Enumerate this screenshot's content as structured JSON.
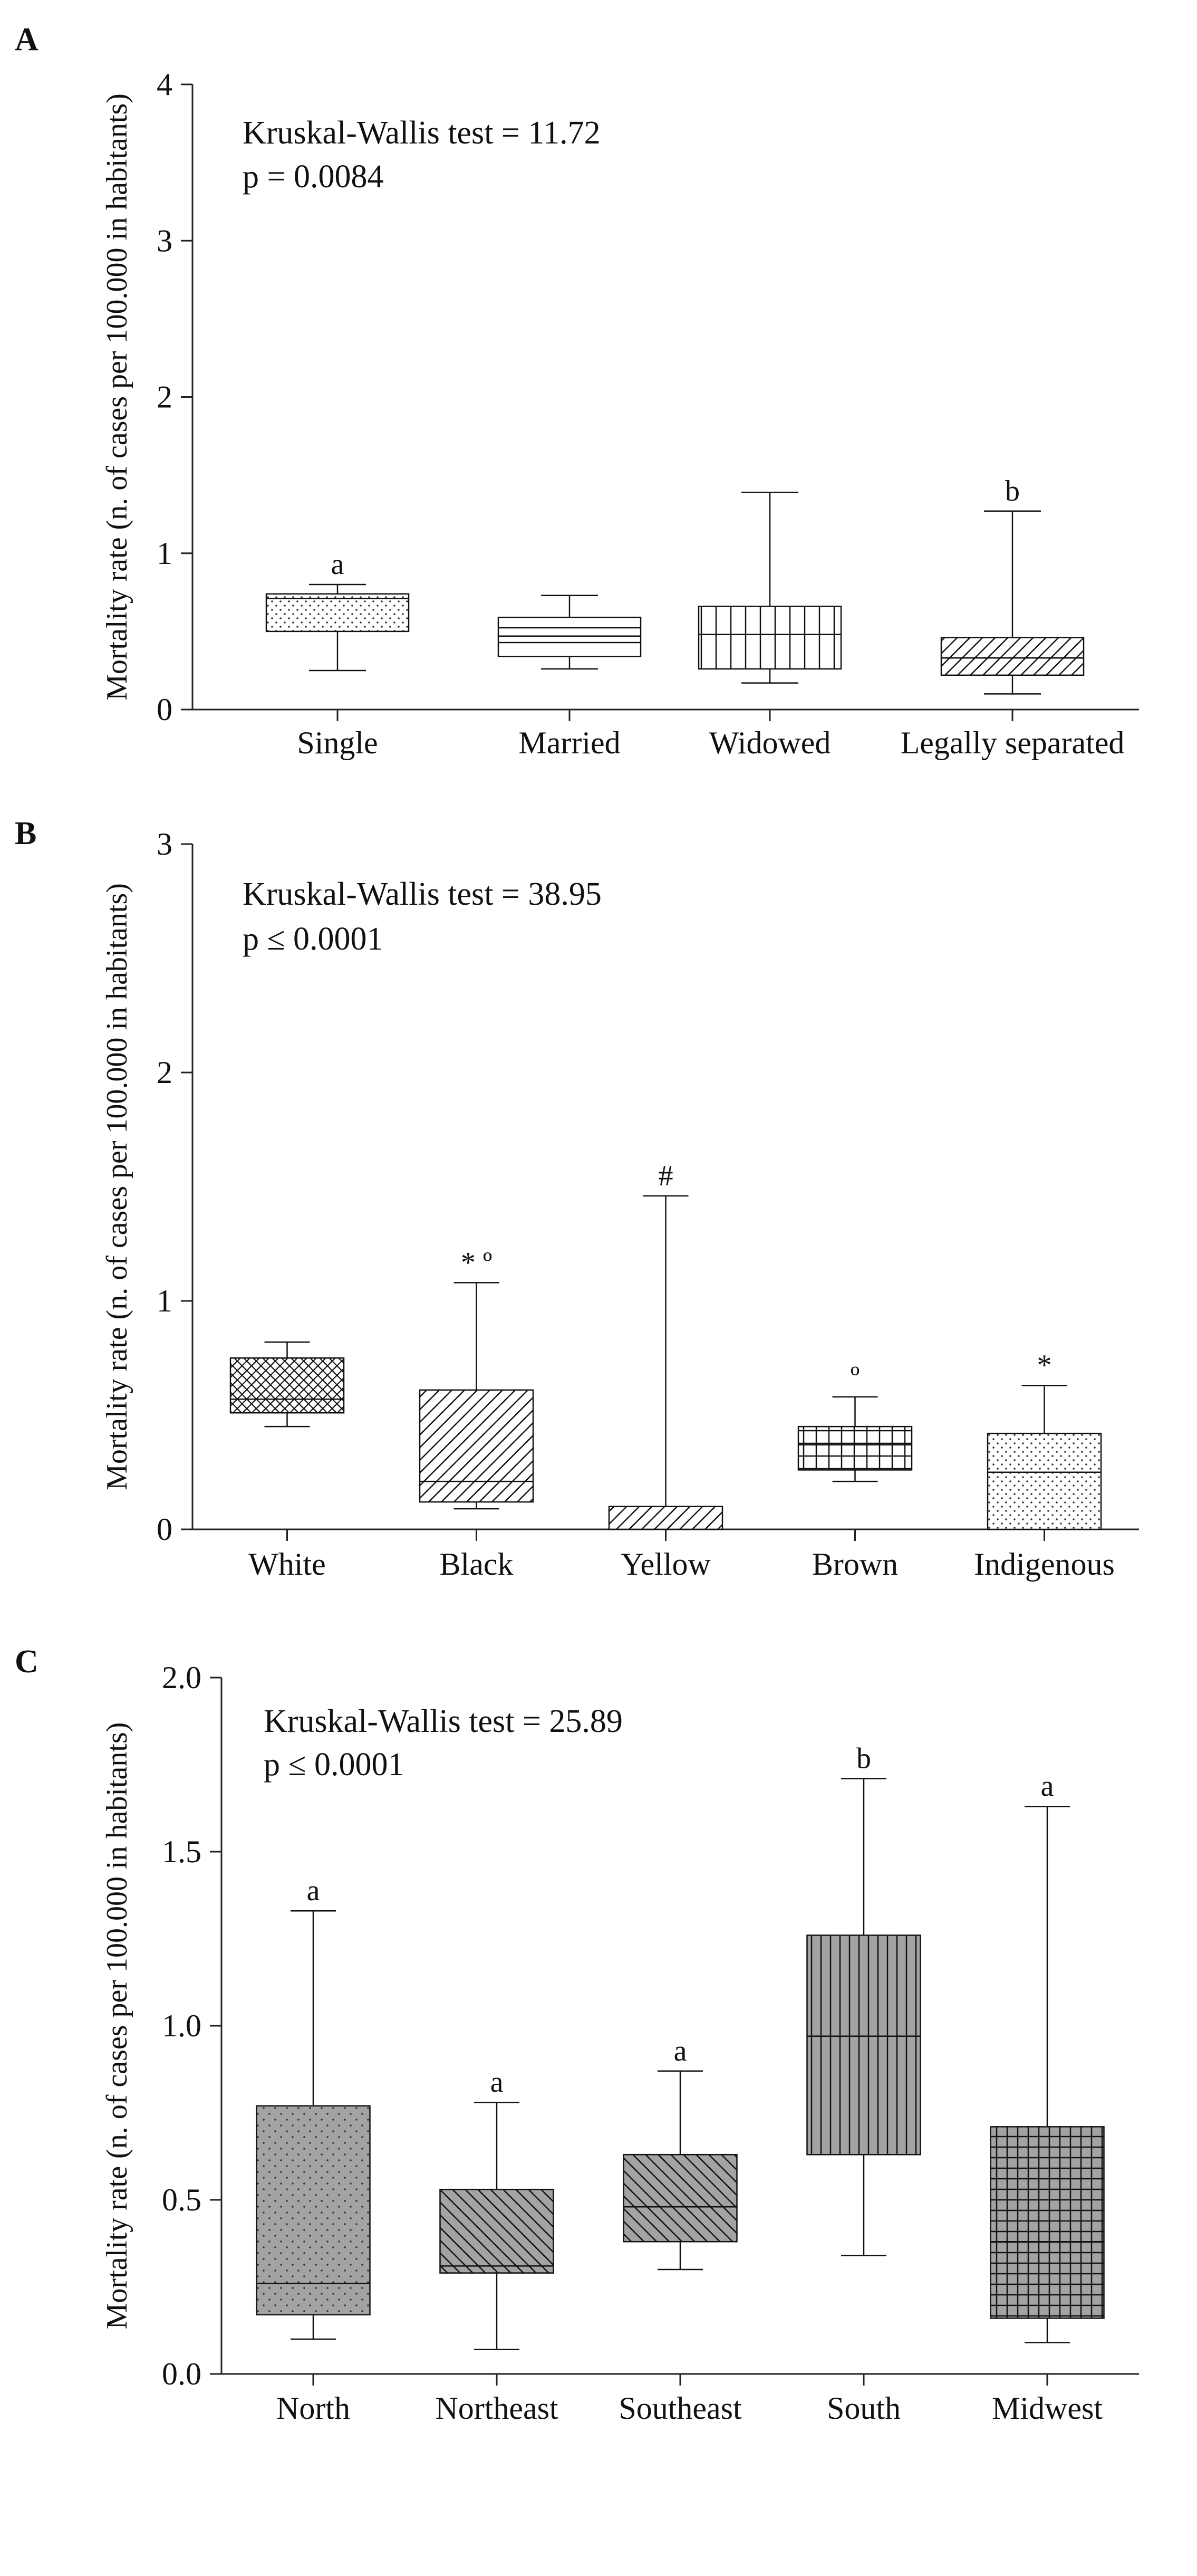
{
  "chart_data": [
    {
      "type": "box",
      "panel_label": "A",
      "ylabel": "Mortality rate (n. of cases per 100.000 in habitants)",
      "ylim": [
        0,
        4
      ],
      "yticks": [
        0,
        1,
        2,
        3,
        4
      ],
      "ytick_labels": [
        "0",
        "1",
        "2",
        "3",
        "4"
      ],
      "stat_text": [
        "Kruskal-Wallis test = 11.72",
        "p = 0.0084"
      ],
      "categories": [
        "Single",
        "Married",
        "Widowed",
        "Legally separated"
      ],
      "boxes": [
        {
          "min": 0.25,
          "q1": 0.5,
          "median": 0.71,
          "q3": 0.74,
          "max": 0.8,
          "pattern": "dots",
          "annotation": "a"
        },
        {
          "min": 0.26,
          "q1": 0.34,
          "median": 0.47,
          "q3": 0.59,
          "max": 0.73,
          "pattern": "hlines",
          "annotation": ""
        },
        {
          "min": 0.17,
          "q1": 0.26,
          "median": 0.48,
          "q3": 0.66,
          "max": 1.39,
          "pattern": "vlines",
          "annotation": ""
        },
        {
          "min": 0.1,
          "q1": 0.22,
          "median": 0.33,
          "q3": 0.46,
          "max": 1.27,
          "pattern": "diagonal",
          "annotation": "b"
        }
      ]
    },
    {
      "type": "box",
      "panel_label": "B",
      "ylabel": "Mortality rate (n. of cases per 100.000 in habitants)",
      "ylim": [
        0,
        3
      ],
      "yticks": [
        0,
        1,
        2,
        3
      ],
      "ytick_labels": [
        "0",
        "1",
        "2",
        "3"
      ],
      "stat_text": [
        "Kruskal-Wallis test = 38.95",
        "p ≤ 0.0001"
      ],
      "categories": [
        "White",
        "Black",
        "Yellow",
        "Brown",
        "Indigenous"
      ],
      "boxes": [
        {
          "min": 0.45,
          "q1": 0.51,
          "median": 0.57,
          "q3": 0.75,
          "max": 0.82,
          "pattern": "crosshatch",
          "annotation": ""
        },
        {
          "min": 0.09,
          "q1": 0.12,
          "median": 0.21,
          "q3": 0.61,
          "max": 1.08,
          "pattern": "diagonal",
          "annotation": "* º"
        },
        {
          "min": 0.0,
          "q1": 0.0,
          "median": 0.0,
          "q3": 0.1,
          "max": 1.46,
          "pattern": "diagonal",
          "annotation": "#"
        },
        {
          "min": 0.21,
          "q1": 0.26,
          "median": 0.37,
          "q3": 0.45,
          "max": 0.58,
          "pattern": "grid",
          "annotation": "º"
        },
        {
          "min": 0.0,
          "q1": 0.0,
          "median": 0.25,
          "q3": 0.42,
          "max": 0.63,
          "pattern": "dots",
          "annotation": "*"
        }
      ]
    },
    {
      "type": "box",
      "panel_label": "C",
      "ylabel": "Mortality rate (n. of cases per 100.000 in habitants)",
      "ylim": [
        0,
        2
      ],
      "yticks": [
        0,
        0.5,
        1,
        1.5,
        2
      ],
      "ytick_labels": [
        "0.0",
        "0.5",
        "1.0",
        "1.5",
        "2.0"
      ],
      "stat_text": [
        "Kruskal-Wallis test = 25.89",
        "p ≤ 0.0001"
      ],
      "categories": [
        "North",
        "Northeast",
        "Southeast",
        "South",
        "Midwest"
      ],
      "boxes": [
        {
          "min": 0.1,
          "q1": 0.17,
          "median": 0.26,
          "q3": 0.77,
          "max": 1.33,
          "pattern": "graydots",
          "annotation": "a"
        },
        {
          "min": 0.07,
          "q1": 0.29,
          "median": 0.31,
          "q3": 0.53,
          "max": 0.78,
          "pattern": "graydiag",
          "annotation": "a"
        },
        {
          "min": 0.3,
          "q1": 0.38,
          "median": 0.48,
          "q3": 0.63,
          "max": 0.87,
          "pattern": "graydiagr",
          "annotation": "a"
        },
        {
          "min": 0.34,
          "q1": 0.63,
          "median": 0.97,
          "q3": 1.26,
          "max": 1.71,
          "pattern": "grayvlines",
          "annotation": "b"
        },
        {
          "min": 0.09,
          "q1": 0.16,
          "median": 0.38,
          "q3": 0.71,
          "max": 1.63,
          "pattern": "graygrid",
          "annotation": "a"
        }
      ]
    }
  ]
}
